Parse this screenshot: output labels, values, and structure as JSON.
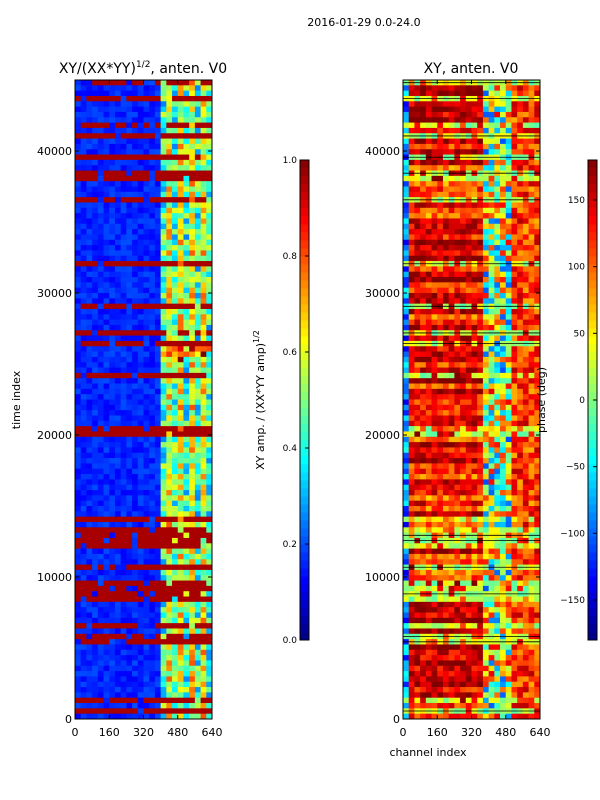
{
  "figure_title": "2016-01-29 0.0-24.0",
  "chart_data": [
    {
      "type": "heatmap",
      "title_main": "XY/(XX*YY)",
      "title_sup": "1/2",
      "title_suffix": ", anten. V0",
      "xlabel": "",
      "ylabel": "time index",
      "xlim": [
        0,
        640
      ],
      "ylim": [
        0,
        45000
      ],
      "xticks": [
        0,
        160,
        320,
        480,
        640
      ],
      "yticks": [
        0,
        10000,
        20000,
        30000,
        40000
      ],
      "colormap": "jet",
      "color_range": [
        0,
        1
      ],
      "colorbar_label_main": "XY amp. / (XX*YY amp)",
      "colorbar_label_sup": "1/2",
      "colorbar_ticks": [
        0.0,
        0.2,
        0.4,
        0.6,
        0.8,
        1.0
      ]
    },
    {
      "type": "heatmap",
      "title_main": "XY, anten. V0",
      "xlabel": "channel index",
      "ylabel": "",
      "xlim": [
        0,
        640
      ],
      "ylim": [
        0,
        45000
      ],
      "xticks": [
        0,
        160,
        320,
        480,
        640
      ],
      "yticks": [
        0,
        10000,
        20000,
        30000,
        40000
      ],
      "colormap": "jet",
      "color_range": [
        -180,
        180
      ],
      "colorbar_label_main": "phase (deg)",
      "colorbar_ticks": [
        -150,
        -100,
        -50,
        0,
        50,
        100,
        150
      ]
    }
  ]
}
